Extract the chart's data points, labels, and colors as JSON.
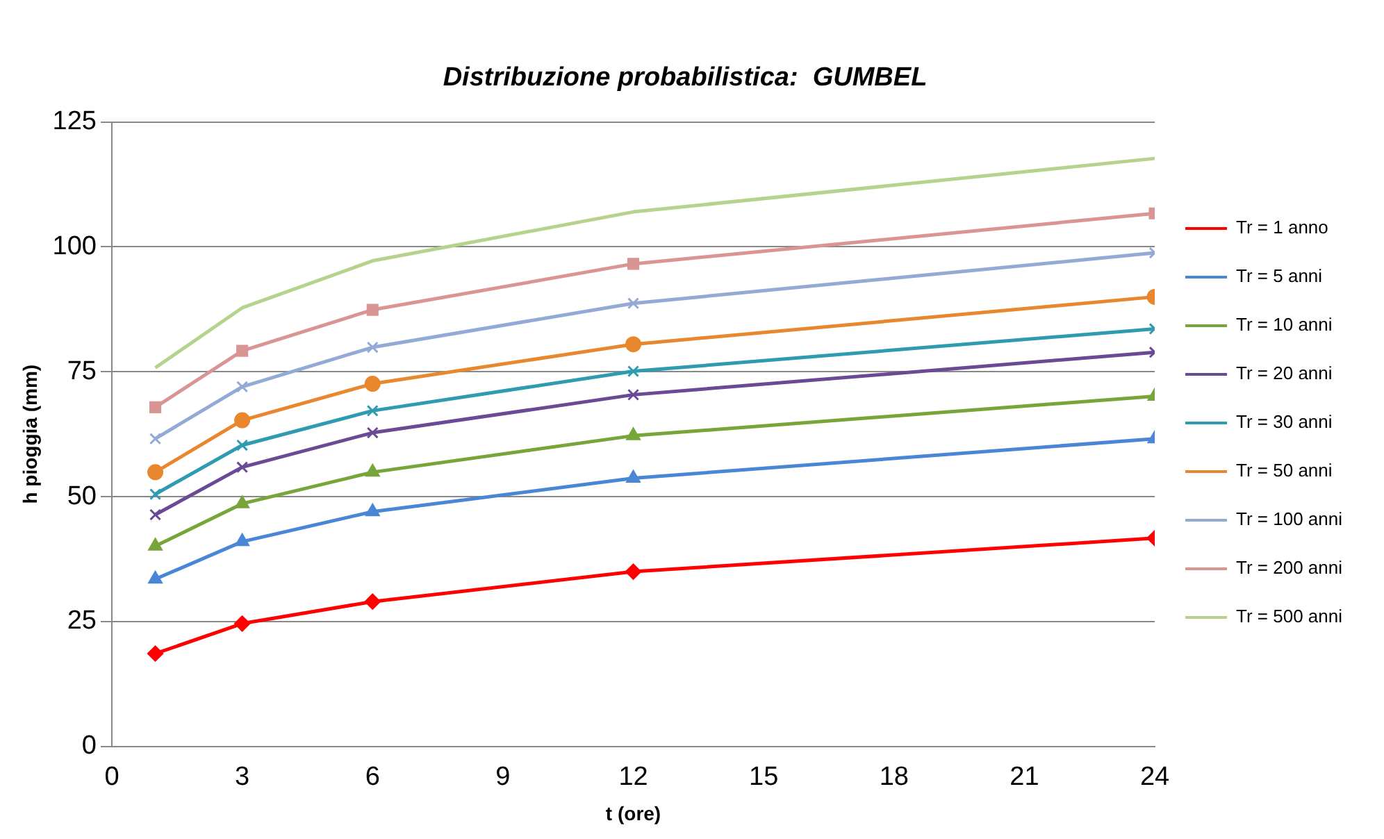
{
  "chart_data": {
    "type": "line",
    "title": "Distribuzione probabilistica:  GUMBEL",
    "xlabel": "t (ore)",
    "ylabel": "h pioggia (mm)",
    "x": [
      1,
      3,
      6,
      12,
      24
    ],
    "xlim": [
      0,
      24
    ],
    "xticks": [
      0,
      3,
      6,
      9,
      12,
      15,
      18,
      21,
      24
    ],
    "ylim": [
      0,
      125
    ],
    "yticks": [
      0,
      25,
      50,
      75,
      100,
      125
    ],
    "grid": "y",
    "legend": "right",
    "line_style": "solid",
    "series": [
      {
        "name": "Tr = 1 anno",
        "color": "#ff0000",
        "marker": "diamond",
        "values": [
          18.6,
          24.6,
          29.0,
          35.0,
          41.7
        ]
      },
      {
        "name": "Tr = 5 anni",
        "color": "#4a86d6",
        "marker": "triangle",
        "values": [
          33.5,
          41.0,
          47.0,
          53.7,
          61.6
        ]
      },
      {
        "name": "Tr = 10 anni",
        "color": "#77a53a",
        "marker": "triangle",
        "values": [
          40.1,
          48.6,
          54.9,
          62.2,
          70.1
        ]
      },
      {
        "name": "Tr = 20 anni",
        "color": "#6a4a94",
        "marker": "cross",
        "values": [
          46.4,
          55.9,
          62.8,
          70.4,
          78.9
        ]
      },
      {
        "name": "Tr = 30 anni",
        "color": "#2f9bb0",
        "marker": "cross",
        "values": [
          50.5,
          60.3,
          67.2,
          75.1,
          83.6
        ]
      },
      {
        "name": "Tr = 50 anni",
        "color": "#e8872e",
        "marker": "circle",
        "values": [
          54.9,
          65.3,
          72.6,
          80.5,
          90.0
        ]
      },
      {
        "name": "Tr = 100 anni",
        "color": "#93a9d6",
        "marker": "cross",
        "values": [
          61.6,
          72.0,
          79.9,
          88.7,
          98.8
        ]
      },
      {
        "name": "Tr = 200 anni",
        "color": "#d99594",
        "marker": "square",
        "values": [
          67.9,
          79.2,
          87.4,
          96.6,
          106.7
        ]
      },
      {
        "name": "Tr = 500 anni",
        "color": "#b5d38d",
        "marker": "none",
        "values": [
          75.8,
          87.8,
          97.2,
          107.0,
          117.7
        ]
      }
    ]
  }
}
